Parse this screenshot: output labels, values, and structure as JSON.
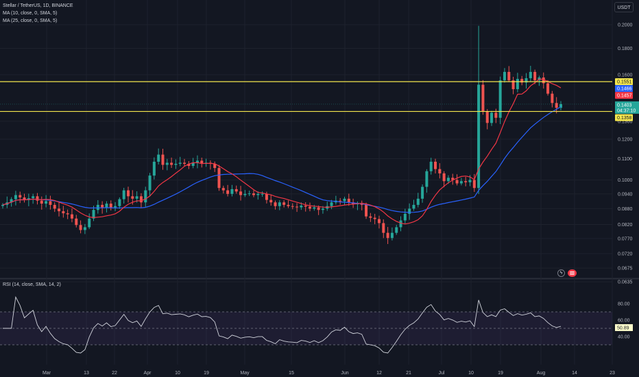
{
  "header": {
    "symbol_line": "Stellar / TetherUS, 1D, BINANCE",
    "ma10_label": "MA (10, close, 0, SMA, 5)",
    "ma25_label": "MA (25, close, 0, SMA, 5)",
    "currency": "USDT"
  },
  "rsi": {
    "label": "RSI (14, close, SMA, 14, 2)",
    "value_tag": "50.89",
    "levels": [
      "80.00",
      "60.00",
      "40.00"
    ]
  },
  "tags": {
    "upper_line": "0.1551",
    "ma25": "0.1466",
    "ma10": "0.1457",
    "last_price": "0.1403",
    "countdown": "04:37:10",
    "lower_line": "0.1358"
  },
  "icons": {
    "bolt": "lightning-icon",
    "flag": "us-flag-icon"
  },
  "colors": {
    "up": "#26a69a",
    "down": "#ef5350",
    "ma10": "#f23645",
    "ma25": "#2962ff",
    "horizontal_lines": "#f5e74d",
    "rsi_line": "#d1d4dc",
    "rsi_band": "#7e57c2"
  },
  "chart_data": {
    "type": "candlestick",
    "y_scale": "log",
    "y_ticks": [
      "0.2000",
      "0.1800",
      "0.1600",
      "0.1300",
      "0.1200",
      "0.1100",
      "0.1000",
      "0.0940",
      "0.0880",
      "0.0820",
      "0.0770",
      "0.0720",
      "0.0675",
      "0.0635"
    ],
    "x_ticks": [
      "Mar",
      "13",
      "22",
      "Apr",
      "10",
      "19",
      "May",
      "15",
      "Jun",
      "12",
      "21",
      "Jul",
      "10",
      "19",
      "Aug",
      "14",
      "23"
    ],
    "horizontal_lines": [
      0.1551,
      0.1358
    ],
    "last_price": 0.1403,
    "closes": [
      0.0895,
      0.0905,
      0.0918,
      0.0935,
      0.0925,
      0.0915,
      0.0922,
      0.093,
      0.0912,
      0.09,
      0.091,
      0.0895,
      0.088,
      0.087,
      0.0862,
      0.0858,
      0.0842,
      0.0818,
      0.08,
      0.081,
      0.0842,
      0.0875,
      0.0895,
      0.0885,
      0.09,
      0.0885,
      0.089,
      0.0918,
      0.0955,
      0.093,
      0.092,
      0.093,
      0.0905,
      0.0955,
      0.102,
      0.1085,
      0.112,
      0.107,
      0.108,
      0.107,
      0.1075,
      0.108,
      0.1075,
      0.1065,
      0.108,
      0.109,
      0.1078,
      0.108,
      0.1075,
      0.1055,
      0.0965,
      0.0955,
      0.094,
      0.096,
      0.095,
      0.0935,
      0.094,
      0.0942,
      0.0935,
      0.094,
      0.094,
      0.0915,
      0.0905,
      0.089,
      0.0905,
      0.0895,
      0.089,
      0.0888,
      0.0885,
      0.0892,
      0.0888,
      0.088,
      0.0885,
      0.0875,
      0.088,
      0.089,
      0.0905,
      0.0912,
      0.091,
      0.092,
      0.0905,
      0.0898,
      0.09,
      0.0895,
      0.085,
      0.0845,
      0.084,
      0.0825,
      0.079,
      0.0772,
      0.079,
      0.081,
      0.0835,
      0.086,
      0.088,
      0.0895,
      0.092,
      0.097,
      0.104,
      0.1085,
      0.105,
      0.103,
      0.0995,
      0.101,
      0.1,
      0.0985,
      0.0995,
      0.099,
      0.1,
      0.0965,
      0.153,
      0.136,
      0.129,
      0.135,
      0.132,
      0.156,
      0.162,
      0.156,
      0.15,
      0.157,
      0.1545,
      0.1575,
      0.162,
      0.156,
      0.158,
      0.154,
      0.147,
      0.141,
      0.138,
      0.1403
    ]
  }
}
